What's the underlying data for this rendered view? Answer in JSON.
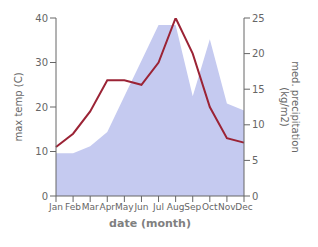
{
  "chart_data": {
    "type": "line",
    "categories": [
      "Jan",
      "Feb",
      "Mar",
      "Apr",
      "May",
      "Jun",
      "Jul",
      "Aug",
      "Sep",
      "Oct",
      "Nov",
      "Dec"
    ],
    "series": [
      {
        "type": "area",
        "color": "#c5caf0",
        "axis": "y2",
        "values": [
          6,
          6,
          7,
          9,
          14,
          19,
          24,
          24,
          14,
          22,
          13,
          12
        ]
      },
      {
        "type": "line",
        "color": "#9b2335",
        "axis": "y",
        "values": [
          11,
          14,
          19,
          26,
          26,
          25,
          30,
          40,
          32,
          20,
          13,
          12
        ]
      }
    ],
    "x_label": "date (month)",
    "y_label": "max temp (C)",
    "y2_label": "med. precipitation\n(kg/m2)",
    "ylim": [
      0,
      40
    ],
    "yticks": [
      0,
      10,
      20,
      30,
      40
    ],
    "y2lim": [
      0,
      25
    ],
    "y2ticks": [
      0,
      5,
      10,
      15,
      20,
      25
    ],
    "grid": false
  }
}
